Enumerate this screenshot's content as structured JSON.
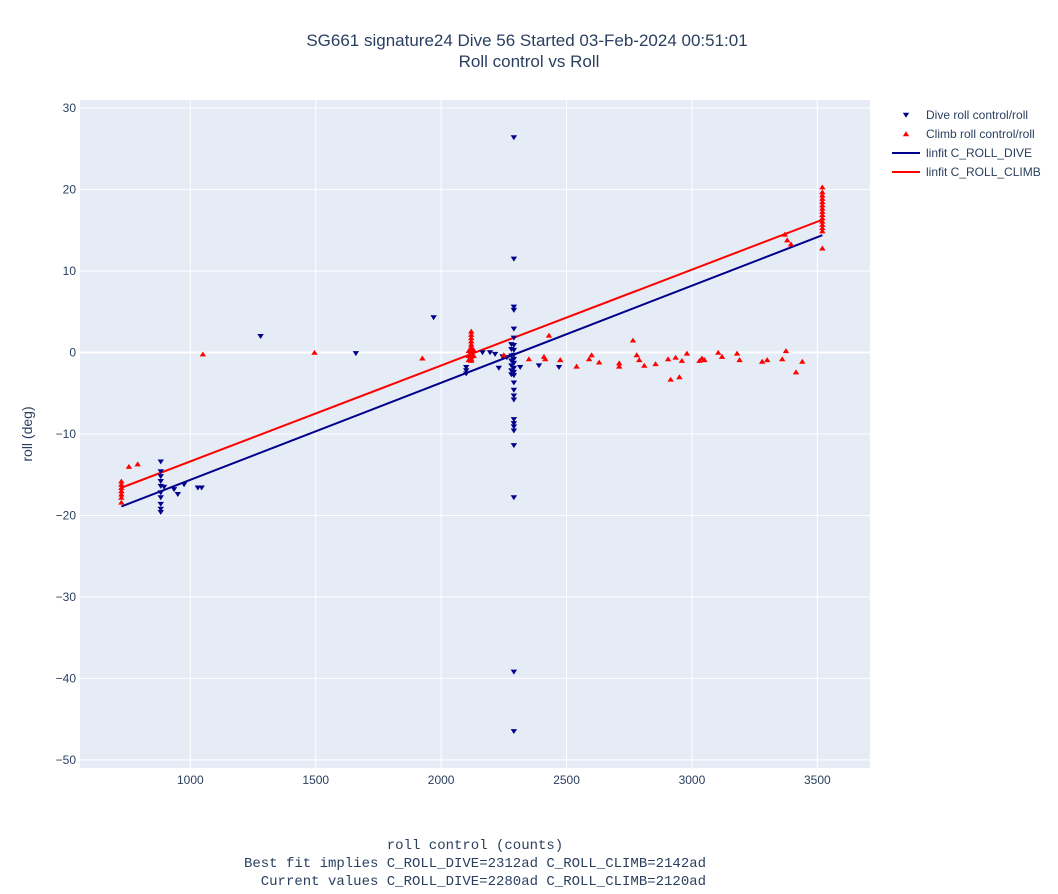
{
  "chart_data": {
    "type": "scatter",
    "title": "SG661 signature24 Dive 56 Started 03-Feb-2024 00:51:01",
    "subtitle": "Roll control vs Roll",
    "xlabel_lines": [
      "roll control (counts)",
      "Best fit implies C_ROLL_DIVE=2312ad C_ROLL_CLIMB=2142ad",
      "  Current values C_ROLL_DIVE=2280ad C_ROLL_CLIMB=2120ad"
    ],
    "ylabel": "roll (deg)",
    "xlim": [
      560,
      3710
    ],
    "ylim": [
      -51,
      31
    ],
    "x_ticks": [
      1000,
      1500,
      2000,
      2500,
      3000,
      3500
    ],
    "y_ticks": [
      -50,
      -40,
      -30,
      -20,
      -10,
      0,
      10,
      20,
      30
    ],
    "grid": true,
    "legend_position": "top-right",
    "colors": {
      "dive": "#00008b",
      "climb": "#ff0000",
      "plot_bg": "#e5ecf6",
      "grid": "#ffffff"
    },
    "series": [
      {
        "name": "Dive roll control/roll",
        "mode": "markers",
        "marker": "triangle-down",
        "color": "#00008b",
        "points": [
          [
            882,
            -13.4
          ],
          [
            882,
            -14.6
          ],
          [
            882,
            -15.2
          ],
          [
            882,
            -15.8
          ],
          [
            882,
            -16.4
          ],
          [
            882,
            -17.2
          ],
          [
            882,
            -17.8
          ],
          [
            882,
            -18.6
          ],
          [
            882,
            -19.2
          ],
          [
            882,
            -19.6
          ],
          [
            895,
            -16.5
          ],
          [
            935,
            -16.8
          ],
          [
            950,
            -17.4
          ],
          [
            975,
            -16.2
          ],
          [
            1030,
            -16.6
          ],
          [
            1045,
            -16.6
          ],
          [
            1280,
            2.0
          ],
          [
            1660,
            -0.1
          ],
          [
            1970,
            4.3
          ],
          [
            2100,
            -1.8
          ],
          [
            2100,
            -2.2
          ],
          [
            2100,
            -2.6
          ],
          [
            2165,
            0.0
          ],
          [
            2195,
            0.0
          ],
          [
            2215,
            -0.2
          ],
          [
            2230,
            -1.9
          ],
          [
            2245,
            -0.5
          ],
          [
            2262,
            -0.6
          ],
          [
            2280,
            0.4
          ],
          [
            2280,
            1.0
          ],
          [
            2280,
            -0.4
          ],
          [
            2280,
            -1.0
          ],
          [
            2280,
            -1.6
          ],
          [
            2280,
            -2.2
          ],
          [
            2280,
            -2.7
          ],
          [
            2290,
            26.4
          ],
          [
            2290,
            11.5
          ],
          [
            2290,
            5.6
          ],
          [
            2290,
            5.2
          ],
          [
            2290,
            2.9
          ],
          [
            2290,
            1.8
          ],
          [
            2290,
            0.9
          ],
          [
            2290,
            0.3
          ],
          [
            2290,
            -0.3
          ],
          [
            2290,
            -0.8
          ],
          [
            2290,
            -1.3
          ],
          [
            2290,
            -1.9
          ],
          [
            2290,
            -2.4
          ],
          [
            2290,
            -2.8
          ],
          [
            2290,
            -3.7
          ],
          [
            2290,
            -4.6
          ],
          [
            2290,
            -5.3
          ],
          [
            2290,
            -5.8
          ],
          [
            2290,
            -8.2
          ],
          [
            2290,
            -8.7
          ],
          [
            2290,
            -9.1
          ],
          [
            2290,
            -9.6
          ],
          [
            2290,
            -11.4
          ],
          [
            2290,
            -17.8
          ],
          [
            2290,
            -39.2
          ],
          [
            2290,
            -46.5
          ],
          [
            2315,
            -1.8
          ],
          [
            2390,
            -1.6
          ],
          [
            2470,
            -1.8
          ]
        ]
      },
      {
        "name": "Climb roll control/roll",
        "mode": "markers",
        "marker": "triangle-up",
        "color": "#ff0000",
        "points": [
          [
            725,
            -15.8
          ],
          [
            725,
            -16.2
          ],
          [
            725,
            -16.6
          ],
          [
            725,
            -17.0
          ],
          [
            725,
            -17.4
          ],
          [
            725,
            -17.8
          ],
          [
            725,
            -18.4
          ],
          [
            755,
            -14.0
          ],
          [
            790,
            -13.7
          ],
          [
            1050,
            -0.2
          ],
          [
            1495,
            0.0
          ],
          [
            1925,
            -0.7
          ],
          [
            2110,
            -0.4
          ],
          [
            2110,
            0.2
          ],
          [
            2110,
            -0.9
          ],
          [
            2120,
            2.6
          ],
          [
            2120,
            2.2
          ],
          [
            2120,
            1.8
          ],
          [
            2120,
            1.4
          ],
          [
            2120,
            1.0
          ],
          [
            2120,
            0.7
          ],
          [
            2120,
            0.4
          ],
          [
            2120,
            0.1
          ],
          [
            2120,
            -0.2
          ],
          [
            2120,
            -0.5
          ],
          [
            2120,
            -0.8
          ],
          [
            2120,
            -1.0
          ],
          [
            2130,
            -0.4
          ],
          [
            2130,
            0.3
          ],
          [
            2250,
            -0.3
          ],
          [
            2350,
            -0.8
          ],
          [
            2410,
            -0.5
          ],
          [
            2415,
            -0.8
          ],
          [
            2430,
            2.1
          ],
          [
            2475,
            -0.9
          ],
          [
            2540,
            -1.7
          ],
          [
            2590,
            -0.8
          ],
          [
            2600,
            -0.3
          ],
          [
            2630,
            -1.2
          ],
          [
            2710,
            -1.7
          ],
          [
            2710,
            -1.3
          ],
          [
            2765,
            1.5
          ],
          [
            2780,
            -0.3
          ],
          [
            2790,
            -0.9
          ],
          [
            2810,
            -1.6
          ],
          [
            2855,
            -1.4
          ],
          [
            2905,
            -0.8
          ],
          [
            2915,
            -3.3
          ],
          [
            2935,
            -0.6
          ],
          [
            2950,
            -3.0
          ],
          [
            2960,
            -1.0
          ],
          [
            2980,
            -0.1
          ],
          [
            3030,
            -1.0
          ],
          [
            3040,
            -0.7
          ],
          [
            3050,
            -0.9
          ],
          [
            3105,
            0.0
          ],
          [
            3120,
            -0.5
          ],
          [
            3180,
            -0.1
          ],
          [
            3190,
            -0.9
          ],
          [
            3280,
            -1.1
          ],
          [
            3300,
            -0.9
          ],
          [
            3360,
            -0.8
          ],
          [
            3370,
            14.5
          ],
          [
            3375,
            0.2
          ],
          [
            3380,
            13.8
          ],
          [
            3395,
            13.3
          ],
          [
            3415,
            -2.4
          ],
          [
            3440,
            -1.1
          ],
          [
            3520,
            20.3
          ],
          [
            3520,
            19.7
          ],
          [
            3520,
            19.3
          ],
          [
            3520,
            18.9
          ],
          [
            3520,
            18.5
          ],
          [
            3520,
            18.1
          ],
          [
            3520,
            17.7
          ],
          [
            3520,
            17.3
          ],
          [
            3520,
            16.9
          ],
          [
            3520,
            16.5
          ],
          [
            3520,
            16.1
          ],
          [
            3520,
            15.7
          ],
          [
            3520,
            15.3
          ],
          [
            3520,
            14.9
          ],
          [
            3520,
            12.8
          ]
        ]
      },
      {
        "name": "linfit C_ROLL_DIVE",
        "mode": "lines",
        "color": "#00008b",
        "points": [
          [
            725,
            -18.9
          ],
          [
            3520,
            14.4
          ]
        ]
      },
      {
        "name": "linfit C_ROLL_CLIMB",
        "mode": "lines",
        "color": "#ff0000",
        "points": [
          [
            725,
            -16.6
          ],
          [
            3520,
            16.3
          ]
        ]
      }
    ]
  }
}
